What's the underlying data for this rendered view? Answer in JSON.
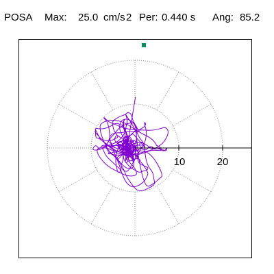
{
  "header": {
    "station": "POSA",
    "max_label": "Max:",
    "max_value": "25.0",
    "max_unit": "cm/s",
    "max_unit_exp": "2",
    "per_label": "Per:",
    "per_value": "0.440 s",
    "ang_label": "Ang:",
    "ang_value": "85.2"
  },
  "plot": {
    "ring_labels": [
      "10",
      "20"
    ],
    "trace_color": "#8000d0",
    "marker_color": "#009060",
    "grid_color": "#888888"
  }
}
